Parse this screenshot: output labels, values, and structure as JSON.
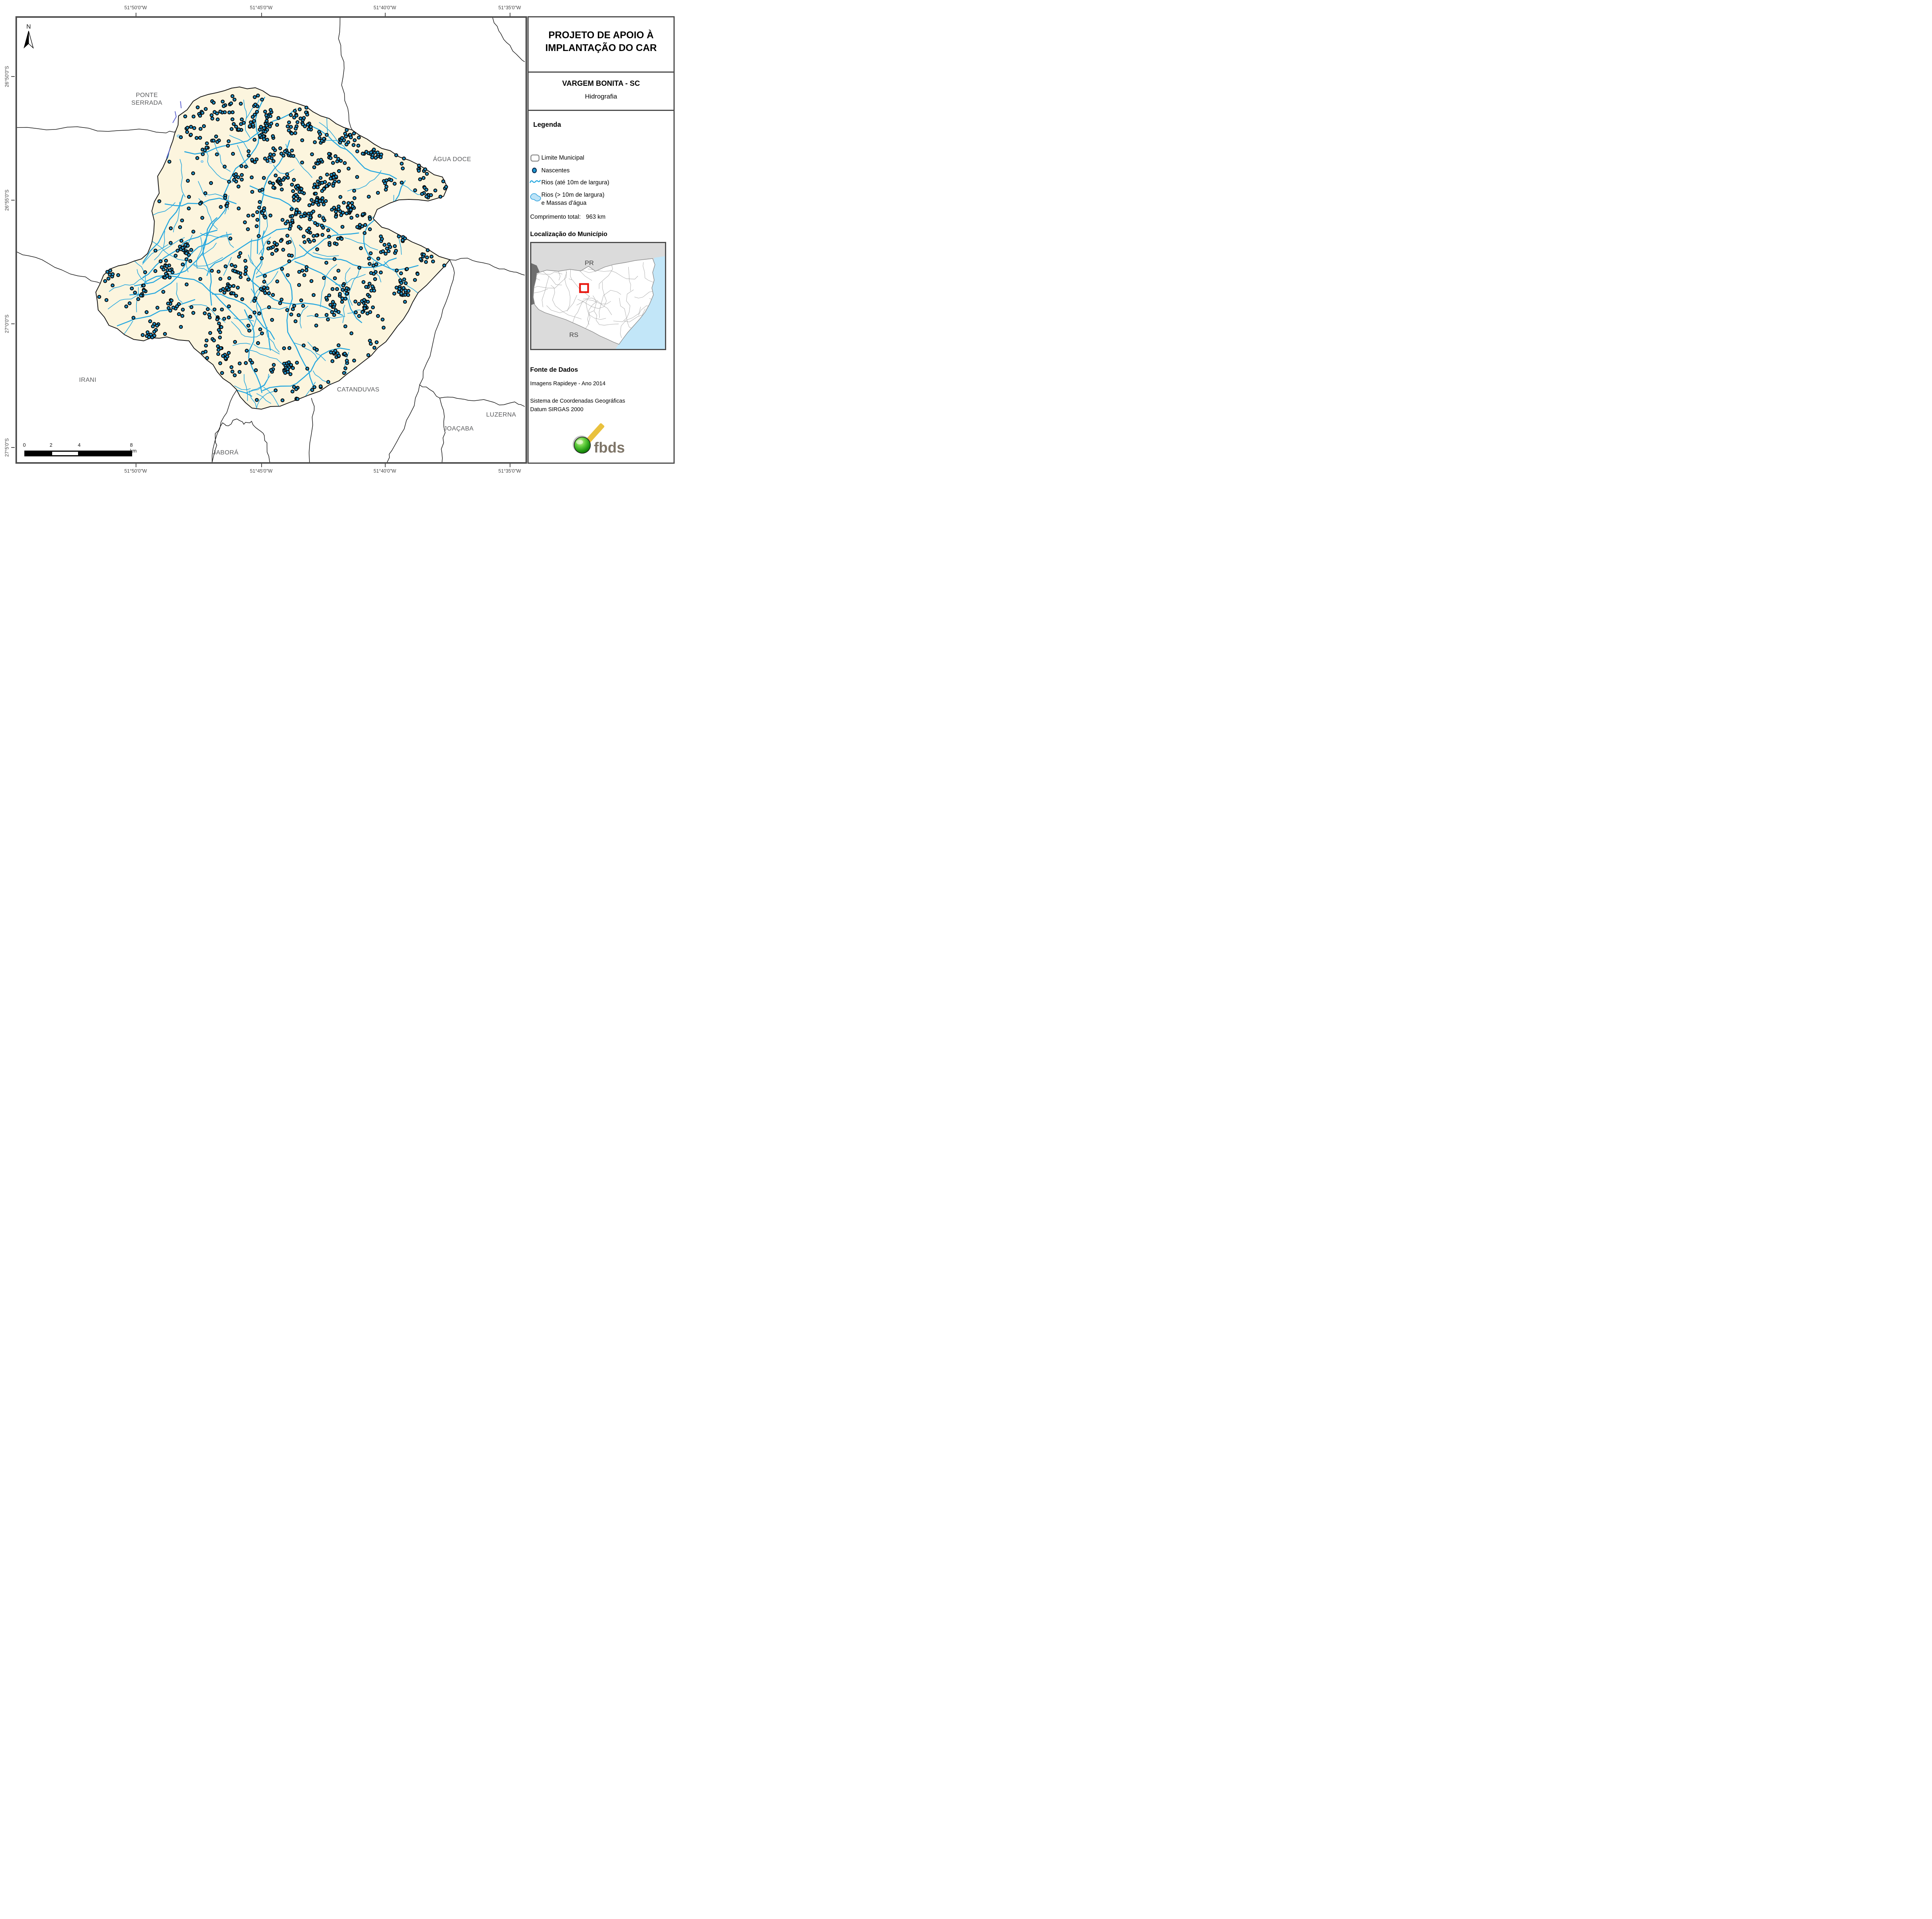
{
  "title_block": {
    "title": "PROJETO DE APOIO À IMPLANTAÇÃO DO CAR"
  },
  "subtitle_block": {
    "municipality": "VARGEM BONITA - SC",
    "theme": "Hidrografia"
  },
  "legend": {
    "heading": "Legenda",
    "limite": "Limite Municipal",
    "nascentes": "Nascentes",
    "rios_10": "Rios (até 10m de largura)",
    "rios_gt10_l1": "Rios (> 10m de largura)",
    "rios_gt10_l2": "e Massas d'água",
    "total_label": "Comprimento total:",
    "total_value": "963 km"
  },
  "locator": {
    "heading": "Localização do Município",
    "north_state": "PR",
    "south_state": "RS"
  },
  "source": {
    "heading": "Fonte de Dados",
    "line1": "Imagens Rapideye - Ano 2014",
    "line2": "Sistema de Coordenadas Geográficas",
    "line3": "Datum SIRGAS 2000"
  },
  "logo": {
    "text": "fbds"
  },
  "compass": {
    "north": "N"
  },
  "neighbors": {
    "ponte_serrada": "PONTE SERRADA",
    "agua_doce": "ÁGUA DOCE",
    "irani": "IRANI",
    "catanduvas": "CATANDUVAS",
    "joacaba": "JOAÇABA",
    "luzerna": "LUZERNA",
    "jabora": "JABORÁ"
  },
  "coordinates": {
    "top": [
      "51°50'0\"W",
      "51°45'0\"W",
      "51°40'0\"W",
      "51°35'0\"W"
    ],
    "bottom": [
      "51°50'0\"W",
      "51°45'0\"W",
      "51°40'0\"W",
      "51°35'0\"W"
    ],
    "left": [
      "26°50'0\"S",
      "26°55'0\"S",
      "27°0'0\"S",
      "27°5'0\"S"
    ]
  },
  "scalebar": {
    "labels": [
      "0",
      "2",
      "4",
      "8 km"
    ]
  },
  "colors": {
    "river": "#25A7DF",
    "nascente_fill": "#1F98D1",
    "nascente_stroke": "#0A0A0A",
    "municipality_fill": "#FCF5DE",
    "water_body_fill": "#BDE3F7",
    "water_body_stroke": "#3FA9E0",
    "boundary": "#141414",
    "neighbor_line": "#1a1a1a",
    "frame": "#4d4d4d",
    "label_gray": "#58595B",
    "red_square": "#E8150D",
    "ocean": "#C2E6F8",
    "inset_land": "#DBDBDB",
    "inset_dark": "#6E6E6E",
    "inset_border_lines": "#9C9C9C",
    "purple_accent": "#5A5FD0",
    "logo_text": "#7E7568",
    "logo_yellow": "#E9C13E"
  }
}
